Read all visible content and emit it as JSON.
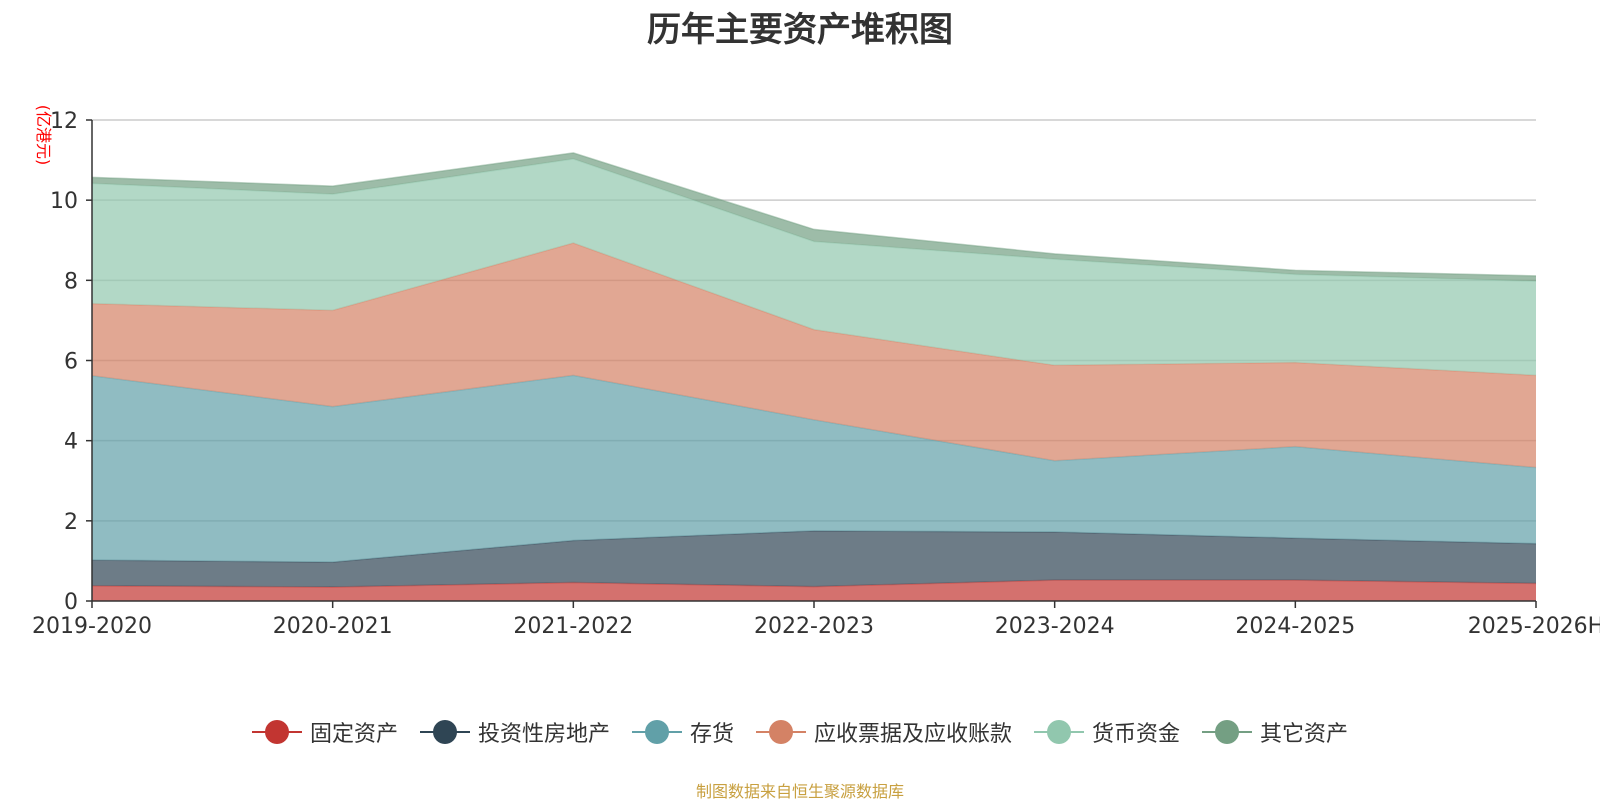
{
  "chart_data": {
    "type": "area",
    "stacked": true,
    "title": "历年主要资产堆积图",
    "ylabel": "(亿港元)",
    "xlabel": "",
    "ylim": [
      0,
      12
    ],
    "yticks": [
      0,
      2,
      4,
      6,
      8,
      10,
      12
    ],
    "categories": [
      "2019-2020",
      "2020-2021",
      "2021-2022",
      "2022-2023",
      "2023-2024",
      "2024-2025",
      "2025-2026H"
    ],
    "series": [
      {
        "name": "固定资产",
        "color": "#c23531",
        "values": [
          0.38,
          0.35,
          0.46,
          0.36,
          0.52,
          0.52,
          0.44
        ]
      },
      {
        "name": "投资性房地产",
        "color": "#2f4554",
        "values": [
          0.64,
          0.62,
          1.05,
          1.39,
          1.2,
          1.05,
          0.99
        ]
      },
      {
        "name": "存货",
        "color": "#61a0a8",
        "values": [
          4.6,
          3.88,
          4.12,
          2.77,
          1.78,
          2.28,
          1.9
        ]
      },
      {
        "name": "应收票据及应收账款",
        "color": "#d48265",
        "values": [
          1.8,
          2.4,
          3.3,
          2.25,
          2.38,
          2.1,
          2.3
        ]
      },
      {
        "name": "货币资金",
        "color": "#91c7ae",
        "values": [
          3.0,
          2.9,
          2.1,
          2.2,
          2.65,
          2.2,
          2.35
        ]
      },
      {
        "name": "其它资产",
        "color": "#749f83",
        "values": [
          0.15,
          0.2,
          0.15,
          0.3,
          0.13,
          0.1,
          0.13
        ]
      }
    ],
    "grid": true,
    "legend_position": "bottom"
  },
  "source_note": "制图数据来自恒生聚源数据库"
}
